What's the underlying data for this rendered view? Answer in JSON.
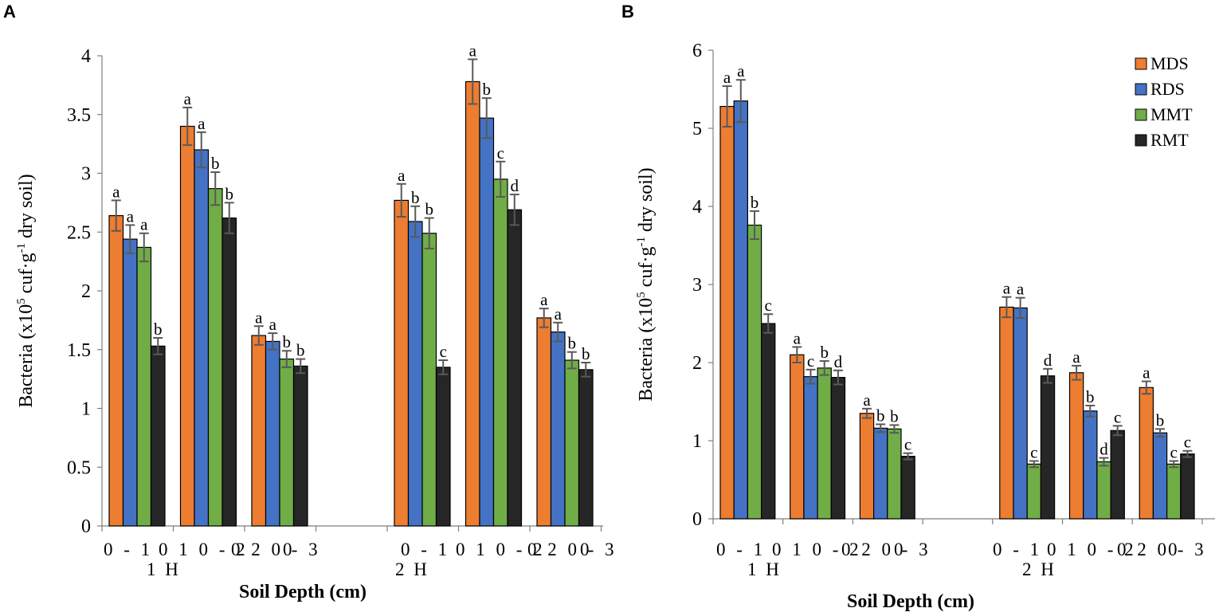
{
  "figure": {
    "panel_a": "A",
    "panel_b": "B"
  },
  "colors": {
    "MDS": "#ed7d31",
    "RDS": "#4472c4",
    "MMT": "#70ad47",
    "RMT": "#262626",
    "error": "#595959"
  },
  "chart_data": [
    {
      "type": "bar",
      "panel": "A",
      "ylabel_main": "Bacteria (x10",
      "ylabel_sup": "5",
      "ylabel_mid": " cuf·g",
      "ylabel_sup2": "-1",
      "ylabel_end": " dry soil)",
      "xlabel": "Soil Depth (cm)",
      "ylim": [
        0,
        4
      ],
      "yticks": [
        "0",
        "0.5",
        "1",
        "1.5",
        "2",
        "2.5",
        "3",
        "3.5",
        "4"
      ],
      "yticks_values": [
        0,
        0.5,
        1,
        1.5,
        2,
        2.5,
        3,
        3.5,
        4
      ],
      "categories": [
        "0-10",
        "10-20",
        "20-30",
        "",
        "0-10",
        "10-20",
        "20-30"
      ],
      "groups": [
        "1H",
        "2H"
      ],
      "series": [
        {
          "name": "MDS",
          "values": [
            2.64,
            3.4,
            1.62,
            null,
            2.77,
            3.78,
            1.77
          ],
          "errors": [
            0.13,
            0.16,
            0.08,
            null,
            0.14,
            0.19,
            0.08
          ],
          "letters": [
            "a",
            "a",
            "a",
            "",
            "a",
            "a",
            "a"
          ]
        },
        {
          "name": "RDS",
          "values": [
            2.44,
            3.2,
            1.57,
            null,
            2.59,
            3.47,
            1.65
          ],
          "errors": [
            0.12,
            0.15,
            0.07,
            null,
            0.13,
            0.17,
            0.08
          ],
          "letters": [
            "a",
            "a",
            "a",
            "",
            "b",
            "b",
            "a"
          ]
        },
        {
          "name": "MMT",
          "values": [
            2.37,
            2.87,
            1.42,
            null,
            2.49,
            2.95,
            1.41
          ],
          "errors": [
            0.12,
            0.14,
            0.07,
            null,
            0.13,
            0.15,
            0.07
          ],
          "letters": [
            "a",
            "b",
            "b",
            "",
            "b",
            "c",
            "b"
          ]
        },
        {
          "name": "RMT",
          "values": [
            1.53,
            2.62,
            1.36,
            null,
            1.35,
            2.69,
            1.33
          ],
          "errors": [
            0.07,
            0.13,
            0.06,
            null,
            0.06,
            0.13,
            0.06
          ],
          "letters": [
            "b",
            "b",
            "b",
            "",
            "c",
            "d",
            "b"
          ]
        }
      ]
    },
    {
      "type": "bar",
      "panel": "B",
      "ylabel_main": "Bacteria (x10",
      "ylabel_sup": "5",
      "ylabel_mid": " cuf·g",
      "ylabel_sup2": "-1",
      "ylabel_end": " dry soil)",
      "xlabel": "Soil Depth (cm)",
      "ylim": [
        0,
        6
      ],
      "yticks": [
        "0",
        "1",
        "2",
        "3",
        "4",
        "5",
        "6"
      ],
      "yticks_values": [
        0,
        1,
        2,
        3,
        4,
        5,
        6
      ],
      "categories": [
        "0-10",
        "10-20",
        "20-30",
        "",
        "0-10",
        "10-20",
        "20-30"
      ],
      "groups": [
        "1H",
        "2H"
      ],
      "legend": [
        "MDS",
        "RDS",
        "MMT",
        "RMT"
      ],
      "legend_position": "top-right",
      "series": [
        {
          "name": "MDS",
          "values": [
            5.28,
            2.1,
            1.35,
            null,
            2.71,
            1.87,
            1.68
          ],
          "errors": [
            0.26,
            0.1,
            0.06,
            null,
            0.13,
            0.09,
            0.08
          ],
          "letters": [
            "a",
            "a",
            "a",
            "",
            "a",
            "a",
            "a"
          ]
        },
        {
          "name": "RDS",
          "values": [
            5.35,
            1.82,
            1.16,
            null,
            2.7,
            1.38,
            1.1
          ],
          "errors": [
            0.27,
            0.09,
            0.05,
            null,
            0.13,
            0.07,
            0.05
          ],
          "letters": [
            "a",
            "c",
            "b",
            "",
            "a",
            "b",
            "b"
          ]
        },
        {
          "name": "MMT",
          "values": [
            3.76,
            1.93,
            1.15,
            null,
            0.7,
            0.73,
            0.7
          ],
          "errors": [
            0.18,
            0.09,
            0.05,
            null,
            0.04,
            0.05,
            0.04
          ],
          "letters": [
            "b",
            "b",
            "b",
            "",
            "c",
            "d",
            "c"
          ]
        },
        {
          "name": "RMT",
          "values": [
            2.5,
            1.81,
            0.8,
            null,
            1.83,
            1.13,
            0.83
          ],
          "errors": [
            0.12,
            0.09,
            0.04,
            null,
            0.09,
            0.06,
            0.04
          ],
          "letters": [
            "c",
            "d",
            "c",
            "",
            "d",
            "c",
            "c"
          ]
        }
      ]
    }
  ]
}
